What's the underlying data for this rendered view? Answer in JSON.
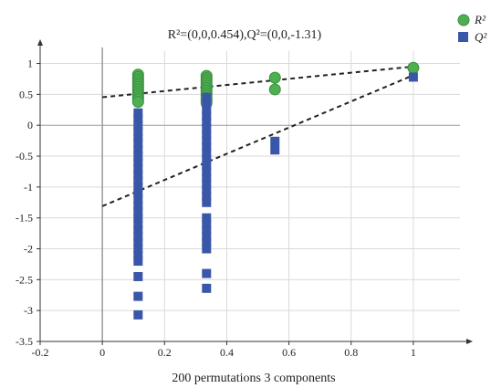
{
  "chart_data": {
    "type": "scatter",
    "title": "R²=(0,0,0.454),Q²=(0,0,-1.31)",
    "xlabel": "200 permutations 3 components",
    "ylabel": "",
    "xlim": [
      -0.2,
      1.15
    ],
    "ylim": [
      -3.5,
      1.2
    ],
    "x_ticks": [
      "-0.2",
      "0",
      "0.2",
      "0.4",
      "0.6",
      "0.8",
      "1"
    ],
    "y_ticks": [
      "1",
      "0.5",
      "0",
      "-0.5",
      "-1",
      "-1.5",
      "-2",
      "-2.5",
      "-3",
      "-3.5"
    ],
    "grid": true,
    "legend_position": "top-right",
    "colors": {
      "r2": "#4caf50",
      "q2": "#3a56a8",
      "line": "#222222",
      "grid": "#d9d9d9"
    },
    "series": [
      {
        "name": "R²",
        "marker": "circle",
        "points": [
          [
            0.115,
            0.82
          ],
          [
            0.115,
            0.78
          ],
          [
            0.115,
            0.74
          ],
          [
            0.115,
            0.7
          ],
          [
            0.115,
            0.66
          ],
          [
            0.115,
            0.62
          ],
          [
            0.115,
            0.58
          ],
          [
            0.115,
            0.54
          ],
          [
            0.115,
            0.5
          ],
          [
            0.115,
            0.46
          ],
          [
            0.115,
            0.42
          ],
          [
            0.115,
            0.38
          ],
          [
            0.335,
            0.8
          ],
          [
            0.335,
            0.76
          ],
          [
            0.335,
            0.72
          ],
          [
            0.335,
            0.68
          ],
          [
            0.335,
            0.64
          ],
          [
            0.335,
            0.6
          ],
          [
            0.335,
            0.56
          ],
          [
            0.335,
            0.52
          ],
          [
            0.335,
            0.48
          ],
          [
            0.335,
            0.44
          ],
          [
            0.335,
            0.4
          ],
          [
            0.335,
            0.36
          ],
          [
            0.555,
            0.77
          ],
          [
            0.555,
            0.58
          ],
          [
            1.0,
            0.93
          ]
        ]
      },
      {
        "name": "Q²",
        "marker": "square",
        "points": [
          [
            0.115,
            0.2
          ],
          [
            0.115,
            0.1
          ],
          [
            0.115,
            0.0
          ],
          [
            0.115,
            -0.1
          ],
          [
            0.115,
            -0.2
          ],
          [
            0.115,
            -0.3
          ],
          [
            0.115,
            -0.4
          ],
          [
            0.115,
            -0.5
          ],
          [
            0.115,
            -0.6
          ],
          [
            0.115,
            -0.7
          ],
          [
            0.115,
            -0.8
          ],
          [
            0.115,
            -0.9
          ],
          [
            0.115,
            -1.0
          ],
          [
            0.115,
            -1.1
          ],
          [
            0.115,
            -1.2
          ],
          [
            0.115,
            -1.3
          ],
          [
            0.115,
            -1.4
          ],
          [
            0.115,
            -1.5
          ],
          [
            0.115,
            -1.6
          ],
          [
            0.115,
            -1.7
          ],
          [
            0.115,
            -1.8
          ],
          [
            0.115,
            -1.9
          ],
          [
            0.115,
            -2.0
          ],
          [
            0.115,
            -2.1
          ],
          [
            0.115,
            -2.2
          ],
          [
            0.115,
            -2.45
          ],
          [
            0.115,
            -2.77
          ],
          [
            0.115,
            -3.07
          ],
          [
            0.335,
            0.45
          ],
          [
            0.335,
            0.35
          ],
          [
            0.335,
            0.25
          ],
          [
            0.335,
            0.15
          ],
          [
            0.335,
            0.05
          ],
          [
            0.335,
            -0.05
          ],
          [
            0.335,
            -0.15
          ],
          [
            0.335,
            -0.25
          ],
          [
            0.335,
            -0.35
          ],
          [
            0.335,
            -0.45
          ],
          [
            0.335,
            -0.55
          ],
          [
            0.335,
            -0.65
          ],
          [
            0.335,
            -0.75
          ],
          [
            0.335,
            -0.85
          ],
          [
            0.335,
            -0.95
          ],
          [
            0.335,
            -1.05
          ],
          [
            0.335,
            -1.15
          ],
          [
            0.335,
            -1.25
          ],
          [
            0.335,
            -1.5
          ],
          [
            0.335,
            -1.6
          ],
          [
            0.335,
            -1.7
          ],
          [
            0.335,
            -1.8
          ],
          [
            0.335,
            -1.9
          ],
          [
            0.335,
            -2.0
          ],
          [
            0.335,
            -2.4
          ],
          [
            0.335,
            -2.64
          ],
          [
            0.555,
            -0.26
          ],
          [
            0.555,
            -0.4
          ],
          [
            1.0,
            0.78
          ]
        ]
      }
    ],
    "regression_lines": [
      {
        "series": "R²",
        "x": [
          0,
          1.0
        ],
        "y": [
          0.454,
          0.95
        ]
      },
      {
        "series": "Q²",
        "x": [
          0,
          1.0
        ],
        "y": [
          -1.31,
          0.81
        ]
      }
    ]
  }
}
